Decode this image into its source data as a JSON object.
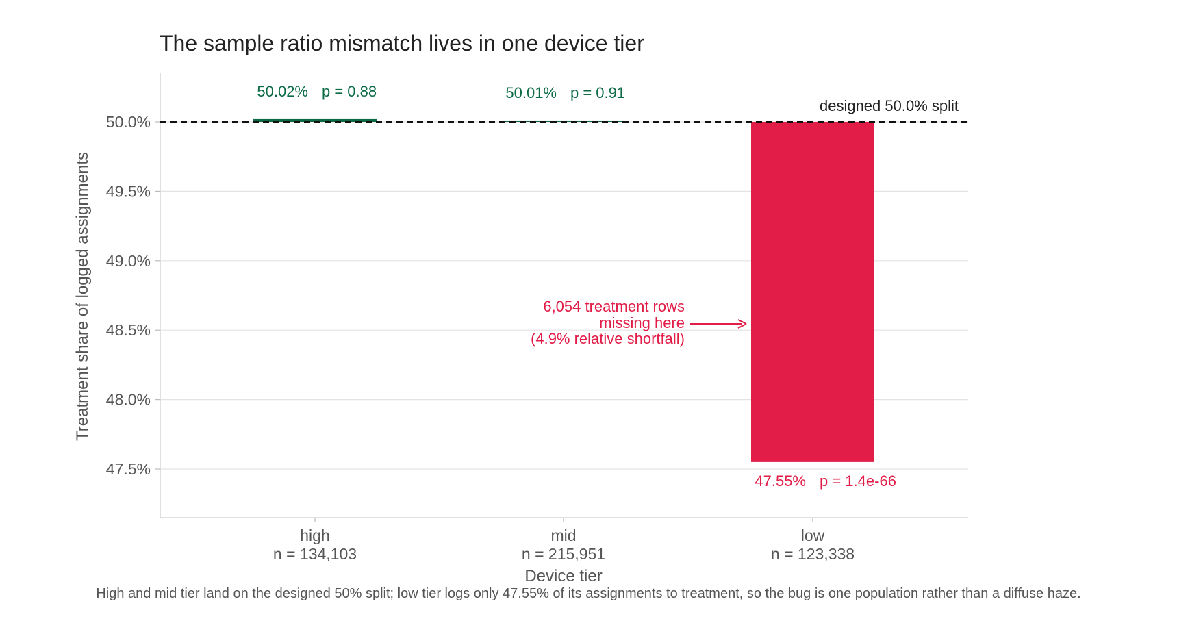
{
  "chart_data": {
    "type": "bar",
    "title": "The sample ratio mismatch lives in one device tier",
    "xlabel": "Device tier",
    "ylabel": "Treatment share of logged assignments",
    "ylim": [
      47.15,
      50.35
    ],
    "y_ticks": [
      {
        "value": 47.5,
        "label": "47.5%"
      },
      {
        "value": 48.0,
        "label": "48.0%"
      },
      {
        "value": 48.5,
        "label": "48.5%"
      },
      {
        "value": 49.0,
        "label": "49.0%"
      },
      {
        "value": 49.5,
        "label": "49.5%"
      },
      {
        "value": 50.0,
        "label": "50.0%"
      }
    ],
    "grid": true,
    "baseline": {
      "value": 50.0,
      "label": "designed 50.0% split"
    },
    "categories": [
      {
        "name": "high",
        "n_label": "n = 134,103",
        "value": 50.02,
        "value_label": "50.02%",
        "p_label": "p = 0.88",
        "color": "#0b6b45"
      },
      {
        "name": "mid",
        "n_label": "n = 215,951",
        "value": 50.01,
        "value_label": "50.01%",
        "p_label": "p = 0.91",
        "color": "#0b6b45"
      },
      {
        "name": "low",
        "n_label": "n = 123,338",
        "value": 47.55,
        "value_label": "47.55%",
        "p_label": "p = 1.4e-66",
        "color": "#e11d48"
      }
    ],
    "annotation": {
      "lines": [
        "6,054 treatment rows",
        "missing here",
        "(4.9% relative shortfall)"
      ],
      "color": "#e11d48"
    }
  },
  "caption": "High and mid tier land on the designed 50% split; low tier logs only 47.55% of its assignments to treatment, so the bug is one population rather than a diffuse haze.",
  "colors": {
    "text": "#222222",
    "axis_text": "#555555",
    "grid": "#e3e3e3",
    "baseline": "#111111"
  }
}
